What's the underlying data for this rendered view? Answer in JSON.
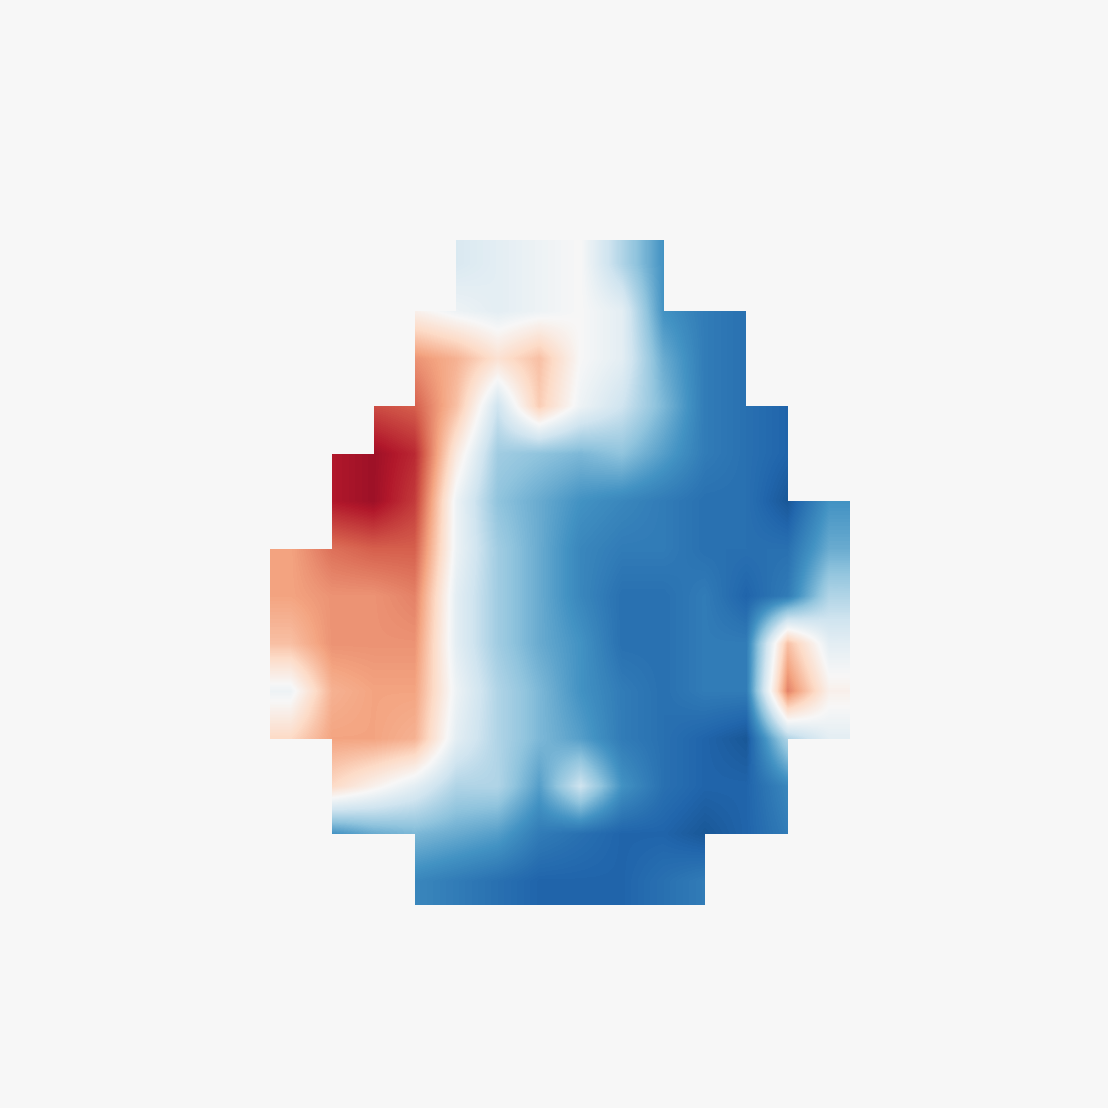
{
  "chart_data": {
    "type": "heatmap",
    "tick_labels": false,
    "color_range": [
      -1,
      1
    ],
    "cells": [
      [
        null,
        null,
        null,
        null,
        -0.15,
        -0.1,
        -0.05,
        0.0,
        -0.3,
        -0.6,
        null,
        null,
        null,
        null
      ],
      [
        null,
        null,
        null,
        0.05,
        -0.05,
        -0.1,
        -0.05,
        0.0,
        -0.1,
        -0.6,
        -0.7,
        -0.75,
        null,
        null
      ],
      [
        null,
        null,
        null,
        0.45,
        0.35,
        0.15,
        0.3,
        0.0,
        -0.1,
        -0.5,
        -0.7,
        -0.75,
        null,
        null
      ],
      [
        null,
        null,
        0.65,
        0.6,
        0.3,
        -0.2,
        0.25,
        -0.05,
        -0.2,
        -0.45,
        -0.7,
        -0.75,
        -0.8,
        null
      ],
      [
        null,
        0.8,
        0.85,
        0.75,
        0.1,
        -0.35,
        -0.4,
        -0.45,
        -0.4,
        -0.55,
        -0.7,
        -0.75,
        -0.8,
        null
      ],
      [
        null,
        0.8,
        0.85,
        0.7,
        -0.05,
        -0.4,
        -0.5,
        -0.6,
        -0.65,
        -0.7,
        -0.75,
        -0.75,
        -0.85,
        -0.6
      ],
      [
        0.4,
        0.55,
        0.6,
        0.6,
        -0.05,
        -0.35,
        -0.5,
        -0.65,
        -0.7,
        -0.7,
        -0.75,
        -0.75,
        -0.75,
        -0.5
      ],
      [
        0.4,
        0.45,
        0.45,
        0.5,
        -0.1,
        -0.35,
        -0.5,
        -0.65,
        -0.75,
        -0.75,
        -0.7,
        -0.8,
        -0.7,
        -0.3
      ],
      [
        0.3,
        0.45,
        0.45,
        0.45,
        -0.1,
        -0.35,
        -0.5,
        -0.6,
        -0.75,
        -0.75,
        -0.7,
        -0.7,
        0.3,
        -0.1
      ],
      [
        -0.05,
        0.35,
        0.4,
        0.4,
        -0.05,
        -0.3,
        -0.45,
        -0.6,
        -0.7,
        -0.75,
        -0.7,
        -0.7,
        0.5,
        0.05
      ],
      [
        0.2,
        0.4,
        0.4,
        0.35,
        -0.1,
        -0.3,
        -0.45,
        -0.55,
        -0.7,
        -0.75,
        -0.8,
        -0.85,
        -0.3,
        -0.1
      ],
      [
        null,
        0.2,
        0.05,
        -0.1,
        -0.3,
        -0.3,
        -0.55,
        -0.2,
        -0.6,
        -0.75,
        -0.8,
        -0.8,
        -0.65,
        null
      ],
      [
        null,
        -0.6,
        -0.5,
        -0.45,
        -0.5,
        -0.55,
        -0.7,
        -0.75,
        -0.8,
        -0.8,
        -0.85,
        -0.8,
        -0.7,
        null
      ],
      [
        null,
        null,
        null,
        -0.65,
        -0.7,
        -0.75,
        -0.8,
        -0.8,
        -0.8,
        -0.75,
        -0.7,
        null,
        null,
        null
      ]
    ]
  }
}
